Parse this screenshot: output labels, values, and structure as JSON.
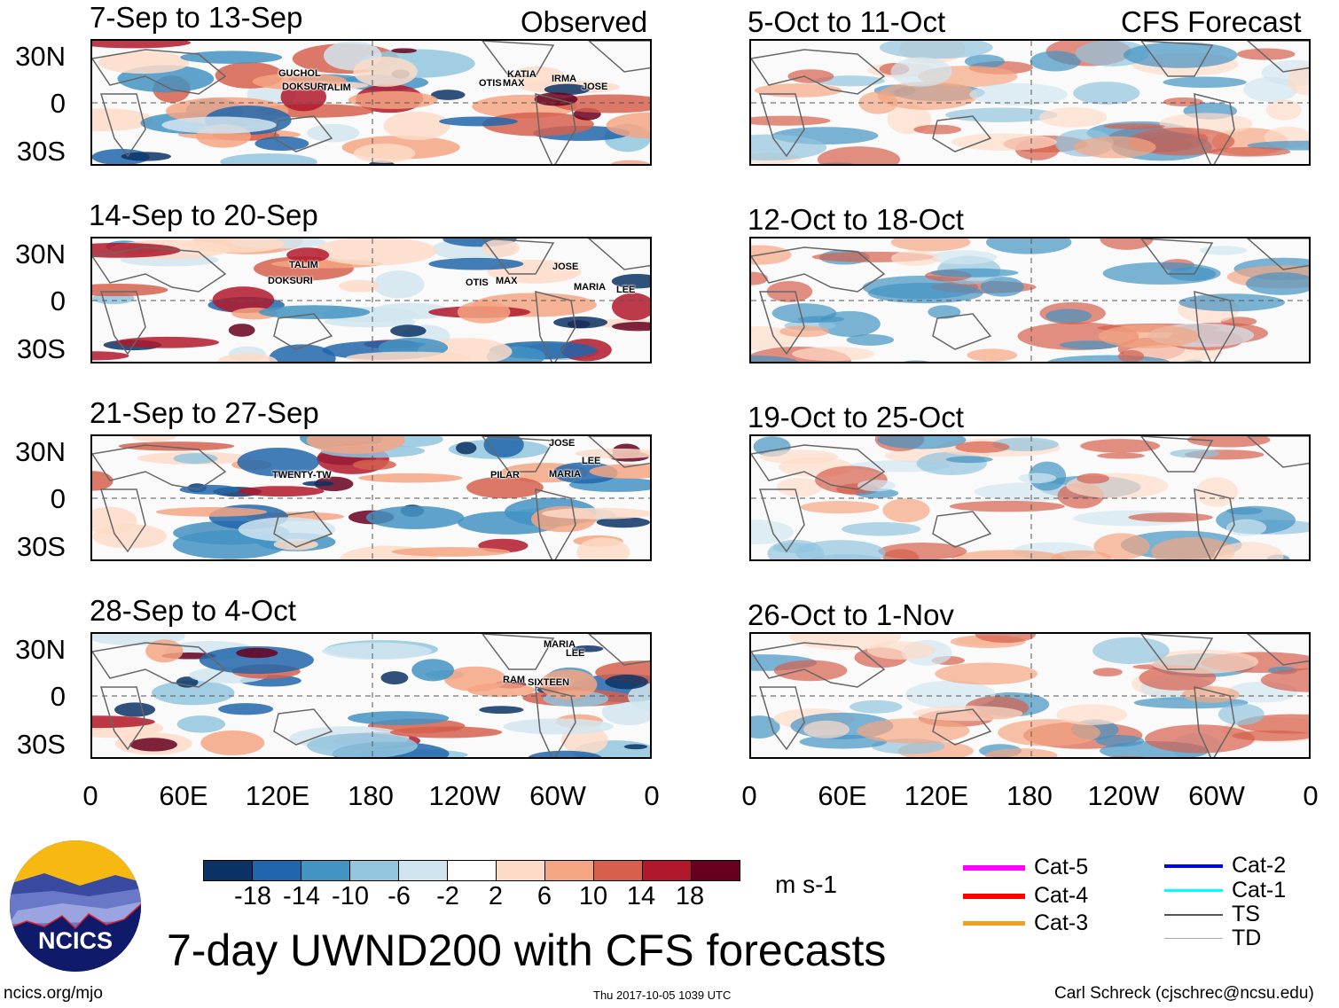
{
  "header": {
    "observed_label": "Observed",
    "forecast_label": "CFS Forecast"
  },
  "panels": [
    {
      "title": "7-Sep to 13-Sep",
      "storms": [
        "GUCHOL",
        "DOKSURI",
        "TALIM",
        "OTIS",
        "MAX",
        "KATIA",
        "IRMA",
        "JOSE"
      ]
    },
    {
      "title": "14-Sep to 20-Sep",
      "storms": [
        "TALIM",
        "DOKSURI",
        "OTIS",
        "MAX",
        "JOSE",
        "MARIA",
        "LEE"
      ]
    },
    {
      "title": "21-Sep to 27-Sep",
      "storms": [
        "TWENTY-TW",
        "PILAR",
        "JOSE",
        "LEE",
        "MARIA"
      ]
    },
    {
      "title": "28-Sep to 4-Oct",
      "storms": [
        "MARIA",
        "LEE",
        "RAM",
        "SIXTEEN"
      ]
    },
    {
      "title": "5-Oct to 11-Oct",
      "storms": []
    },
    {
      "title": "12-Oct to 18-Oct",
      "storms": []
    },
    {
      "title": "19-Oct to 25-Oct",
      "storms": []
    },
    {
      "title": "26-Oct to 1-Nov",
      "storms": []
    }
  ],
  "axes": {
    "y_ticks": [
      "30N",
      "0",
      "30S"
    ],
    "x_ticks": [
      "0",
      "60E",
      "120E",
      "180",
      "120W",
      "60W",
      "0"
    ]
  },
  "colorbar": {
    "labels": [
      "-18",
      "-14",
      "-10",
      "-6",
      "-2",
      "2",
      "6",
      "10",
      "14",
      "18"
    ],
    "colors": [
      "#0a3264",
      "#2166ac",
      "#4393c3",
      "#92c5de",
      "#d1e5f0",
      "#ffffff",
      "#fddbc7",
      "#f4a582",
      "#d6604d",
      "#b2182b",
      "#67001f"
    ],
    "units": "m s-1"
  },
  "legend": [
    {
      "label": "Cat-5",
      "color": "#ff00ff"
    },
    {
      "label": "Cat-4",
      "color": "#ff0000"
    },
    {
      "label": "Cat-3",
      "color": "#f0a020"
    },
    {
      "label": "Cat-2",
      "color": "#0000ff"
    },
    {
      "label": "Cat-1",
      "color": "#00ffff"
    },
    {
      "label": "TS",
      "color": "#555555"
    },
    {
      "label": "TD",
      "color": "#aaaaaa"
    }
  ],
  "footer": {
    "logo_text": "NCICS",
    "title": "7-day UWND200 with CFS forecasts",
    "url": "ncics.org/mjo",
    "timestamp": "Thu 2017-10-05 1039 UTC",
    "credit": "Carl Schreck (cjschrec@ncsu.edu)"
  }
}
